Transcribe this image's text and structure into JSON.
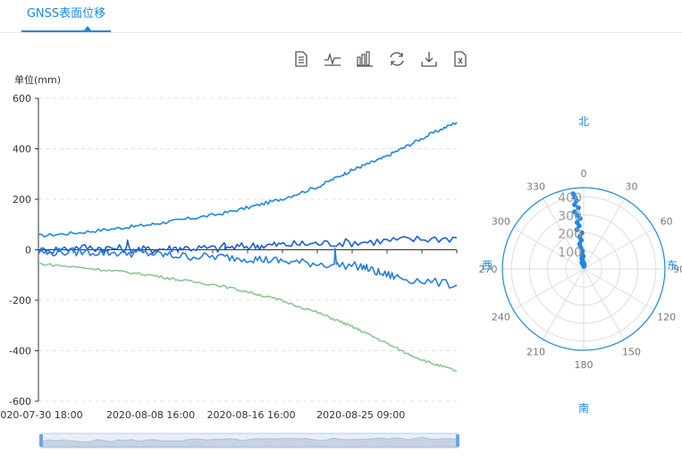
{
  "tab": {
    "label": "GNSS表面位移"
  },
  "toolbar": {
    "icons": [
      "data-view-icon",
      "line-chart-icon",
      "bar-chart-icon",
      "restore-icon",
      "save-image-icon",
      "export-excel-icon"
    ]
  },
  "colors": {
    "accent": "#1e88e5",
    "series_total": "#1e88e5",
    "series_blue_dark": "#1b5fd6",
    "series_blue_light": "#2a7de0",
    "series_green": "#88c995",
    "grid": "#e0e0e0"
  },
  "chart_data": [
    {
      "type": "line",
      "ylabel": "单位(mm)",
      "ylim": [
        -600,
        600
      ],
      "yticks": [
        600,
        400,
        200,
        0,
        -200,
        -400,
        -600
      ],
      "xtick_labels": [
        "2020-07-30 18:00",
        "2020-08-08 16:00",
        "2020-08-16 16:00",
        "2020-08-25 09:00"
      ],
      "grid": "horizontal dashed",
      "series": [
        {
          "color": "#1e88e5",
          "x": [
            "2020-07-30 18:00",
            "2020-08-03 00:00",
            "2020-08-06 00:00",
            "2020-08-08 16:00",
            "2020-08-11 00:00",
            "2020-08-14 00:00",
            "2020-08-16 16:00",
            "2020-08-19 00:00",
            "2020-08-22 00:00",
            "2020-08-24 00:00",
            "2020-08-25 09:00",
            "2020-08-27 00:00",
            "2020-08-29 00:00",
            "2020-08-31 00:00",
            "2020-09-02 00:00"
          ],
          "values": [
            55,
            68,
            85,
            100,
            118,
            140,
            170,
            200,
            250,
            300,
            330,
            360,
            410,
            460,
            505
          ]
        },
        {
          "color": "#1b5fd6",
          "x": [
            "2020-07-30 18:00",
            "2020-08-03 00:00",
            "2020-08-06 00:00",
            "2020-08-08 16:00",
            "2020-08-11 00:00",
            "2020-08-14 00:00",
            "2020-08-16 16:00",
            "2020-08-19 00:00",
            "2020-08-22 00:00",
            "2020-08-25 09:00",
            "2020-08-29 00:00",
            "2020-09-02 00:00"
          ],
          "values": [
            -5,
            10,
            5,
            0,
            8,
            5,
            15,
            20,
            25,
            30,
            40,
            47
          ]
        },
        {
          "color": "#2a7de0",
          "x": [
            "2020-07-30 18:00",
            "2020-08-03 00:00",
            "2020-08-06 00:00",
            "2020-08-08 16:00",
            "2020-08-11 00:00",
            "2020-08-14 00:00",
            "2020-08-16 16:00",
            "2020-08-19 00:00",
            "2020-08-22 00:00",
            "2020-08-25 09:00",
            "2020-08-27 00:00",
            "2020-08-29 00:00",
            "2020-09-02 00:00"
          ],
          "values": [
            -10,
            -8,
            -12,
            -15,
            -25,
            -28,
            -35,
            -45,
            -55,
            -65,
            -95,
            -115,
            -140
          ]
        },
        {
          "color": "#88c995",
          "x": [
            "2020-07-30 18:00",
            "2020-08-03 00:00",
            "2020-08-06 00:00",
            "2020-08-08 16:00",
            "2020-08-11 00:00",
            "2020-08-14 00:00",
            "2020-08-16 16:00",
            "2020-08-19 00:00",
            "2020-08-22 00:00",
            "2020-08-24 00:00",
            "2020-08-25 09:00",
            "2020-08-27 00:00",
            "2020-08-29 00:00",
            "2020-08-31 00:00",
            "2020-09-02 00:00"
          ],
          "values": [
            -55,
            -70,
            -85,
            -100,
            -120,
            -140,
            -170,
            -200,
            -250,
            -290,
            -320,
            -360,
            -410,
            -450,
            -480
          ]
        }
      ],
      "spikes": [
        {
          "series": 1,
          "x": "2020-08-06 20:00",
          "value": 38
        },
        {
          "series": 2,
          "x": "2020-08-23 08:00",
          "value": 5
        },
        {
          "series": 1,
          "x": "2020-08-14 12:00",
          "value": 28
        }
      ]
    },
    {
      "type": "scatter",
      "coordinate": "polar",
      "angle_labels": [
        "0",
        "30",
        "60",
        "90",
        "120",
        "150",
        "180",
        "210",
        "240",
        "270",
        "300",
        "330"
      ],
      "radius_labels": [
        "400",
        "300",
        "200",
        "100"
      ],
      "rlim": [
        0,
        450
      ],
      "direction_labels": {
        "north": "北",
        "east": "东",
        "south": "南",
        "west": "西"
      },
      "points_angle_deg": [
        352,
        353,
        354,
        352,
        355,
        351,
        353,
        356,
        352,
        354,
        350,
        357,
        353,
        355,
        351,
        352,
        356,
        354,
        353,
        358,
        350,
        352,
        355,
        2,
        8,
        5,
        350,
        345
      ],
      "points_radius": [
        420,
        400,
        380,
        360,
        340,
        320,
        300,
        280,
        260,
        240,
        220,
        200,
        180,
        160,
        140,
        120,
        100,
        90,
        80,
        70,
        60,
        50,
        40,
        30,
        20,
        15,
        25,
        35
      ]
    }
  ]
}
